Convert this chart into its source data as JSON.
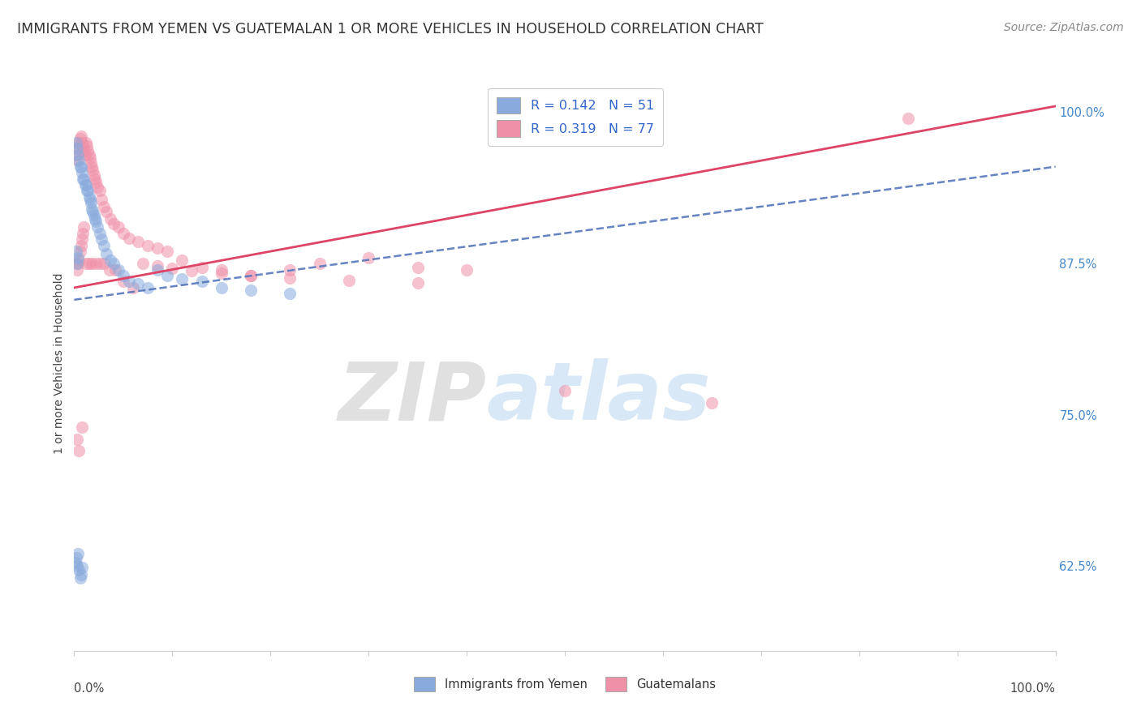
{
  "title": "IMMIGRANTS FROM YEMEN VS GUATEMALAN 1 OR MORE VEHICLES IN HOUSEHOLD CORRELATION CHART",
  "source": "Source: ZipAtlas.com",
  "ylabel": "1 or more Vehicles in Household",
  "ytick_labels": [
    "100.0%",
    "87.5%",
    "75.0%",
    "62.5%"
  ],
  "ytick_values": [
    1.0,
    0.875,
    0.75,
    0.625
  ],
  "xlim": [
    0.0,
    1.0
  ],
  "ylim": [
    0.555,
    1.03
  ],
  "blue_line_y_start": 0.845,
  "blue_line_y_end": 0.955,
  "pink_line_y_start": 0.855,
  "pink_line_y_end": 1.005,
  "watermark_zip": "ZIP",
  "watermark_atlas": "atlas",
  "dot_color_blue": "#88aadd",
  "dot_color_pink": "#f090a8",
  "line_color_blue": "#5577bb",
  "line_color_pink": "#dd4466",
  "dot_size": 120,
  "dot_alpha": 0.55,
  "grid_color": "#cccccc",
  "background_color": "#ffffff",
  "title_fontsize": 12.5,
  "source_fontsize": 10,
  "axis_fontsize": 10,
  "tick_fontsize": 10.5,
  "blue_x": [
    0.002,
    0.003,
    0.004,
    0.005,
    0.006,
    0.007,
    0.008,
    0.009,
    0.01,
    0.011,
    0.012,
    0.013,
    0.014,
    0.015,
    0.016,
    0.017,
    0.018,
    0.019,
    0.02,
    0.021,
    0.022,
    0.024,
    0.026,
    0.028,
    0.03,
    0.033,
    0.037,
    0.04,
    0.045,
    0.05,
    0.056,
    0.065,
    0.075,
    0.085,
    0.095,
    0.11,
    0.13,
    0.15,
    0.18,
    0.22,
    0.001,
    0.002,
    0.003,
    0.004,
    0.005,
    0.006,
    0.007,
    0.008,
    0.003,
    0.004,
    0.002
  ],
  "blue_y": [
    0.975,
    0.97,
    0.965,
    0.96,
    0.955,
    0.955,
    0.95,
    0.945,
    0.945,
    0.94,
    0.94,
    0.935,
    0.935,
    0.93,
    0.928,
    0.925,
    0.92,
    0.918,
    0.915,
    0.912,
    0.91,
    0.905,
    0.9,
    0.895,
    0.89,
    0.883,
    0.878,
    0.875,
    0.87,
    0.865,
    0.86,
    0.858,
    0.855,
    0.87,
    0.865,
    0.862,
    0.86,
    0.855,
    0.853,
    0.85,
    0.628,
    0.632,
    0.625,
    0.635,
    0.622,
    0.615,
    0.618,
    0.624,
    0.875,
    0.88,
    0.885
  ],
  "pink_x": [
    0.002,
    0.003,
    0.004,
    0.005,
    0.006,
    0.007,
    0.008,
    0.009,
    0.01,
    0.011,
    0.012,
    0.013,
    0.014,
    0.015,
    0.016,
    0.017,
    0.018,
    0.019,
    0.02,
    0.021,
    0.022,
    0.024,
    0.026,
    0.028,
    0.03,
    0.033,
    0.037,
    0.04,
    0.045,
    0.05,
    0.056,
    0.065,
    0.075,
    0.085,
    0.095,
    0.11,
    0.13,
    0.15,
    0.18,
    0.22,
    0.25,
    0.3,
    0.35,
    0.4,
    0.003,
    0.004,
    0.005,
    0.006,
    0.007,
    0.008,
    0.009,
    0.01,
    0.012,
    0.015,
    0.018,
    0.022,
    0.026,
    0.03,
    0.036,
    0.042,
    0.05,
    0.06,
    0.07,
    0.085,
    0.1,
    0.12,
    0.15,
    0.18,
    0.22,
    0.28,
    0.35,
    0.5,
    0.65,
    0.85,
    0.003,
    0.005,
    0.008
  ],
  "pink_y": [
    0.97,
    0.965,
    0.96,
    0.975,
    0.978,
    0.98,
    0.975,
    0.972,
    0.968,
    0.965,
    0.975,
    0.972,
    0.968,
    0.965,
    0.962,
    0.958,
    0.955,
    0.952,
    0.948,
    0.945,
    0.942,
    0.938,
    0.935,
    0.928,
    0.922,
    0.918,
    0.912,
    0.908,
    0.905,
    0.9,
    0.896,
    0.893,
    0.89,
    0.888,
    0.885,
    0.878,
    0.872,
    0.87,
    0.865,
    0.87,
    0.875,
    0.88,
    0.872,
    0.87,
    0.87,
    0.875,
    0.878,
    0.885,
    0.89,
    0.895,
    0.9,
    0.905,
    0.875,
    0.875,
    0.875,
    0.875,
    0.875,
    0.875,
    0.87,
    0.87,
    0.86,
    0.855,
    0.875,
    0.873,
    0.871,
    0.869,
    0.867,
    0.865,
    0.863,
    0.861,
    0.859,
    0.77,
    0.76,
    0.995,
    0.73,
    0.72,
    0.74
  ]
}
